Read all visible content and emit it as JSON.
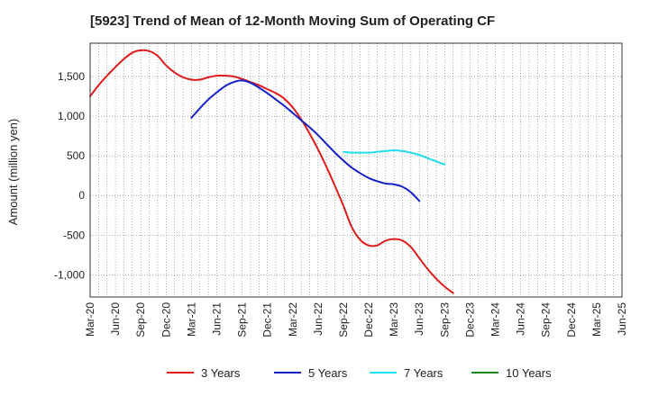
{
  "chart_data": {
    "type": "line",
    "title": "[5923]  Trend of Mean of 12-Month Moving Sum of Operating CF",
    "xlabel": "",
    "ylabel": "Amount (million yen)",
    "ylim": [
      -1280,
      1920
    ],
    "yticks": [
      1500,
      1000,
      500,
      0,
      -500,
      -1000
    ],
    "ytick_labels": [
      "1,500",
      "1,000",
      "500",
      "0",
      "-500",
      "-1,000"
    ],
    "xticks": [
      "Mar-20",
      "Jun-20",
      "Sep-20",
      "Dec-20",
      "Mar-21",
      "Jun-21",
      "Sep-21",
      "Dec-21",
      "Mar-22",
      "Jun-22",
      "Sep-22",
      "Dec-22",
      "Mar-23",
      "Jun-23",
      "Sep-23",
      "Dec-23",
      "Mar-24",
      "Jun-24",
      "Sep-24",
      "Dec-24",
      "Mar-25",
      "Jun-25"
    ],
    "grid": true,
    "legend_position": "bottom",
    "series": [
      {
        "name": "3 Years",
        "color": "#e01b1b",
        "start_index": 0,
        "values": [
          1250,
          1390,
          1510,
          1620,
          1720,
          1800,
          1830,
          1820,
          1760,
          1640,
          1550,
          1490,
          1460,
          1460,
          1490,
          1510,
          1510,
          1500,
          1470,
          1430,
          1390,
          1340,
          1290,
          1220,
          1110,
          960,
          780,
          580,
          360,
          120,
          -130,
          -400,
          -560,
          -630,
          -630,
          -570,
          -550,
          -570,
          -650,
          -790,
          -930,
          -1050,
          -1150,
          -1230
        ]
      },
      {
        "name": "5 Years",
        "color": "#1522c8",
        "start_index": 12,
        "values": [
          980,
          1100,
          1210,
          1300,
          1380,
          1430,
          1450,
          1420,
          1360,
          1290,
          1210,
          1130,
          1040,
          950,
          860,
          760,
          650,
          540,
          440,
          350,
          280,
          220,
          180,
          150,
          140,
          110,
          40,
          -70
        ]
      },
      {
        "name": "7 Years",
        "color": "#22ddee",
        "start_index": 30,
        "values": [
          550,
          540,
          540,
          540,
          550,
          560,
          570,
          560,
          540,
          510,
          470,
          430,
          390
        ]
      },
      {
        "name": "10 Years",
        "color": "#1a8a1a",
        "start_index": 0,
        "values": []
      }
    ]
  }
}
